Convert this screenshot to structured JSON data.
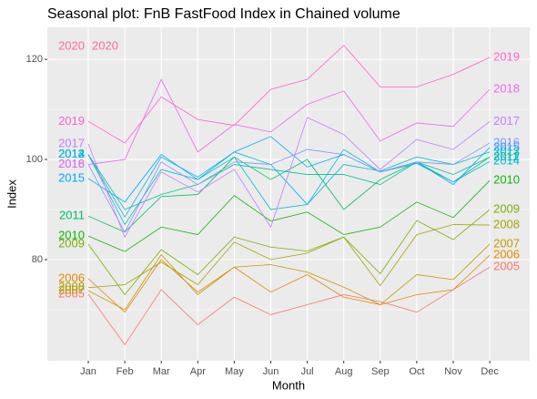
{
  "chart_data": {
    "type": "line",
    "title": "Seasonal plot: FnB FastFood Index in Chained volume",
    "x_label": "Month",
    "y_label": "Index",
    "categories": [
      "Jan",
      "Feb",
      "Mar",
      "Apr",
      "May",
      "Jun",
      "Jul",
      "Aug",
      "Sep",
      "Oct",
      "Nov",
      "Dec"
    ],
    "ylim": [
      59.8,
      126.4
    ],
    "yticks": [
      80,
      100,
      120
    ],
    "grid": true,
    "series": [
      {
        "name": "2005",
        "color": "#F8766D",
        "values": [
          73.1,
          63,
          74,
          67,
          72.5,
          69,
          71,
          73,
          71.6,
          69.5,
          74,
          78.5
        ]
      },
      {
        "name": "2006",
        "color": "#E38900",
        "values": [
          76.2,
          69.5,
          80,
          73.5,
          78.5,
          73.5,
          77,
          72.5,
          71,
          73,
          74,
          80.9
        ]
      },
      {
        "name": "2007",
        "color": "#C49A00",
        "values": [
          73.8,
          70,
          81,
          73,
          78.5,
          79,
          77.5,
          74.5,
          71,
          77,
          76,
          83.1
        ]
      },
      {
        "name": "2008",
        "color": "#A3A500",
        "values": [
          74.4,
          75,
          79.5,
          75,
          83.5,
          80,
          81.3,
          84.5,
          74.8,
          85,
          87,
          86.9
        ]
      },
      {
        "name": "2009",
        "color": "#7CAE00",
        "values": [
          83.1,
          73,
          82,
          77,
          84.5,
          82.5,
          81.7,
          84.5,
          77.2,
          87.8,
          84,
          90
        ]
      },
      {
        "name": "2010",
        "color": "#0CB702",
        "values": [
          84.7,
          81.6,
          86.5,
          85,
          92.8,
          87.7,
          89.5,
          85,
          86.5,
          91.5,
          88.4,
          95.8
        ]
      },
      {
        "name": "2011",
        "color": "#00BE67",
        "values": [
          88.7,
          85.5,
          92.6,
          93,
          100.5,
          96,
          100,
          90,
          96,
          99.5,
          95.5,
          100.5
        ]
      },
      {
        "name": "2012",
        "color": "#00C19A",
        "values": [
          101,
          90,
          93,
          95,
          99,
          98,
          97,
          97,
          95,
          99.5,
          97,
          100.5
        ]
      },
      {
        "name": "2013",
        "color": "#00BFC4",
        "values": [
          101,
          87,
          98,
          96,
          100.5,
          90,
          91,
          99,
          97.7,
          100.5,
          99,
          101.5
        ]
      },
      {
        "name": "2014",
        "color": "#00B8E7",
        "values": [
          101,
          88.5,
          100.5,
          96.5,
          101.5,
          99,
          91,
          102,
          97.5,
          99.2,
          95.5,
          99.6
        ]
      },
      {
        "name": "2015",
        "color": "#00A9FF",
        "values": [
          96.2,
          91.5,
          101,
          96,
          101.5,
          104.6,
          98.5,
          101,
          97.5,
          99.5,
          95,
          102.4
        ]
      },
      {
        "name": "2016",
        "color": "#8494FF",
        "values": [
          99,
          85.5,
          99.5,
          95,
          99.5,
          99,
          102,
          101,
          97.5,
          99.5,
          99,
          103.3
        ]
      },
      {
        "name": "2017",
        "color": "#C77CFF",
        "values": [
          103.1,
          84.5,
          97.5,
          93.5,
          98,
          86.5,
          108.4,
          105,
          98,
          104,
          102,
          107.6
        ]
      },
      {
        "name": "2018",
        "color": "#ED68ED",
        "values": [
          99,
          100,
          116,
          101.5,
          107,
          105.5,
          111,
          113.7,
          103.7,
          107.3,
          106.6,
          114
        ]
      },
      {
        "name": "2019",
        "color": "#FF61CC",
        "values": [
          107.6,
          103.3,
          112.5,
          108,
          106.8,
          114,
          116,
          122.8,
          114.5,
          114.5,
          117,
          120.4
        ]
      },
      {
        "name": "2020",
        "color": "#FF68A1",
        "values": [
          122.6,
          null,
          null,
          null,
          null,
          null,
          null,
          null,
          null,
          null,
          null,
          null
        ]
      }
    ]
  }
}
